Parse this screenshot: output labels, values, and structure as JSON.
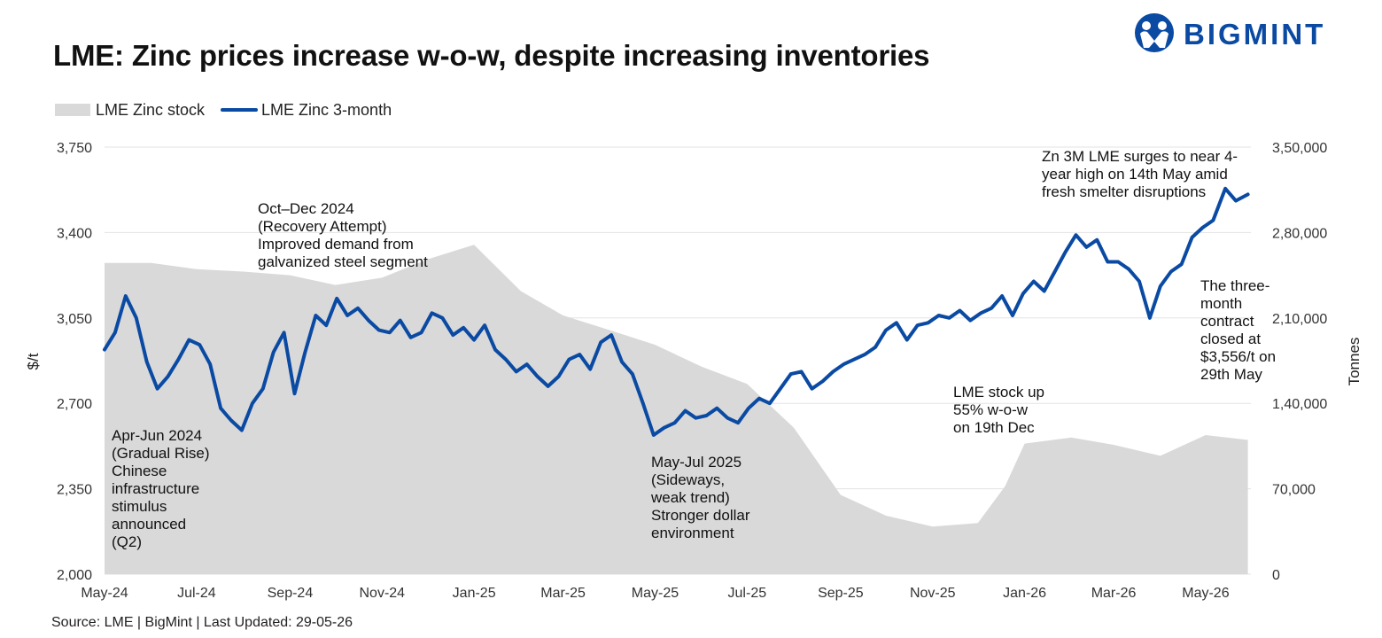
{
  "title": "LME: Zinc prices increase w-o-w, despite increasing inventories",
  "brand": {
    "name": "BIGMINT",
    "color": "#0a4aa3"
  },
  "source": "Source: LME | BigMint | Last Updated: 29-05-26",
  "colors": {
    "line": "#0a4aa3",
    "area": "#d9d9d9",
    "grid": "#e3e3e3"
  },
  "annotations": {
    "a1": "Apr-Jun 2024\n(Gradual Rise)\nChinese\ninfrastructure\nstimulus\nannounced\n(Q2)",
    "a2": "Oct–Dec 2024\n(Recovery Attempt)\nImproved demand from\ngalvanized steel segment",
    "a3": "May-Jul 2025\n(Sideways,\nweak trend)\nStronger dollar\nenvironment",
    "a4": "LME stock up\n55% w-o-w\non 19th Dec",
    "a5": "Zn 3M LME surges to near 4-\nyear high on 14th May amid\nfresh smelter disruptions",
    "a6": "The three-\nmonth\ncontract\nclosed at\n$3,556/t on\n29th May"
  },
  "chart_data": {
    "type": "line",
    "title": "LME: Zinc prices increase w-o-w, despite increasing inventories",
    "xlabel": "",
    "ylabel": "$/t",
    "y2label": "Tonnes",
    "ylim": [
      2000,
      3750
    ],
    "y2lim": [
      0,
      350000
    ],
    "xticks": [
      "May-24",
      "Jul-24",
      "Sep-24",
      "Nov-24",
      "Jan-25",
      "Mar-25",
      "May-25",
      "Jul-25",
      "Sep-25",
      "Nov-25",
      "Jan-26",
      "Mar-26",
      "May-26"
    ],
    "yticks": [
      "2,000",
      "2,350",
      "2,700",
      "3,050",
      "3,400",
      "3,750"
    ],
    "y2ticks": [
      "0",
      "70,000",
      "1,40,000",
      "2,10,000",
      "2,80,000",
      "3,50,000"
    ],
    "legend": "top-left",
    "grid": true,
    "series": [
      {
        "name": "LME Zinc 3-month",
        "type": "line",
        "axis": "left",
        "x": [
          "2024-05-01",
          "2024-05-08",
          "2024-05-15",
          "2024-05-22",
          "2024-05-29",
          "2024-06-05",
          "2024-06-12",
          "2024-06-19",
          "2024-06-26",
          "2024-07-03",
          "2024-07-10",
          "2024-07-17",
          "2024-07-24",
          "2024-07-31",
          "2024-08-07",
          "2024-08-14",
          "2024-08-21",
          "2024-08-28",
          "2024-09-04",
          "2024-09-11",
          "2024-09-18",
          "2024-09-25",
          "2024-10-02",
          "2024-10-09",
          "2024-10-16",
          "2024-10-23",
          "2024-10-30",
          "2024-11-06",
          "2024-11-13",
          "2024-11-20",
          "2024-11-27",
          "2024-12-04",
          "2024-12-11",
          "2024-12-18",
          "2024-12-25",
          "2025-01-01",
          "2025-01-08",
          "2025-01-15",
          "2025-01-22",
          "2025-01-29",
          "2025-02-05",
          "2025-02-12",
          "2025-02-19",
          "2025-02-26",
          "2025-03-05",
          "2025-03-12",
          "2025-03-19",
          "2025-03-26",
          "2025-04-02",
          "2025-04-09",
          "2025-04-16",
          "2025-04-23",
          "2025-04-30",
          "2025-05-07",
          "2025-05-14",
          "2025-05-21",
          "2025-05-28",
          "2025-06-04",
          "2025-06-11",
          "2025-06-18",
          "2025-06-25",
          "2025-07-02",
          "2025-07-09",
          "2025-07-16",
          "2025-07-23",
          "2025-07-30",
          "2025-08-06",
          "2025-08-13",
          "2025-08-20",
          "2025-08-27",
          "2025-09-03",
          "2025-09-10",
          "2025-09-17",
          "2025-09-24",
          "2025-10-01",
          "2025-10-08",
          "2025-10-15",
          "2025-10-22",
          "2025-10-29",
          "2025-11-05",
          "2025-11-12",
          "2025-11-19",
          "2025-11-26",
          "2025-12-03",
          "2025-12-10",
          "2025-12-17",
          "2025-12-24",
          "2025-12-31",
          "2026-01-07",
          "2026-01-14",
          "2026-01-21",
          "2026-01-28",
          "2026-02-04",
          "2026-02-11",
          "2026-02-18",
          "2026-02-25",
          "2026-03-04",
          "2026-03-11",
          "2026-03-18",
          "2026-03-25",
          "2026-04-01",
          "2026-04-08",
          "2026-04-15",
          "2026-04-22",
          "2026-04-29",
          "2026-05-06",
          "2026-05-14",
          "2026-05-21",
          "2026-05-29"
        ],
        "values": [
          2920,
          2990,
          3140,
          3050,
          2870,
          2760,
          2810,
          2880,
          2960,
          2940,
          2860,
          2680,
          2630,
          2590,
          2700,
          2760,
          2910,
          2990,
          2740,
          2910,
          3060,
          3020,
          3130,
          3060,
          3090,
          3040,
          3000,
          2990,
          3040,
          2970,
          2990,
          3070,
          3050,
          2980,
          3010,
          2960,
          3020,
          2920,
          2880,
          2830,
          2860,
          2810,
          2770,
          2810,
          2880,
          2900,
          2840,
          2950,
          2980,
          2870,
          2820,
          2700,
          2570,
          2600,
          2620,
          2670,
          2640,
          2650,
          2680,
          2640,
          2620,
          2680,
          2720,
          2700,
          2760,
          2820,
          2830,
          2760,
          2790,
          2830,
          2860,
          2880,
          2900,
          2930,
          3000,
          3030,
          2960,
          3020,
          3030,
          3060,
          3050,
          3080,
          3040,
          3070,
          3090,
          3140,
          3060,
          3150,
          3200,
          3160,
          3240,
          3320,
          3390,
          3340,
          3370,
          3280,
          3280,
          3250,
          3200,
          3050,
          3180,
          3240,
          3270,
          3380,
          3420,
          3450,
          3580,
          3530,
          3556
        ]
      },
      {
        "name": "LME Zinc stock",
        "type": "area",
        "axis": "right",
        "x": [
          "2024-05-01",
          "2024-06-01",
          "2024-07-01",
          "2024-08-01",
          "2024-09-01",
          "2024-10-01",
          "2024-11-01",
          "2024-12-01",
          "2025-01-01",
          "2025-02-01",
          "2025-03-01",
          "2025-04-01",
          "2025-05-01",
          "2025-06-01",
          "2025-07-01",
          "2025-08-01",
          "2025-09-01",
          "2025-10-01",
          "2025-11-01",
          "2025-12-01",
          "2025-12-19",
          "2026-01-01",
          "2026-02-01",
          "2026-03-01",
          "2026-04-01",
          "2026-05-01",
          "2026-05-29"
        ],
        "values": [
          255000,
          255000,
          250000,
          248000,
          245000,
          237000,
          243000,
          258000,
          270000,
          232000,
          212000,
          200000,
          188000,
          170000,
          156000,
          120000,
          65000,
          48000,
          39000,
          42000,
          72000,
          107000,
          112000,
          106000,
          97000,
          114000,
          110000
        ]
      }
    ]
  }
}
